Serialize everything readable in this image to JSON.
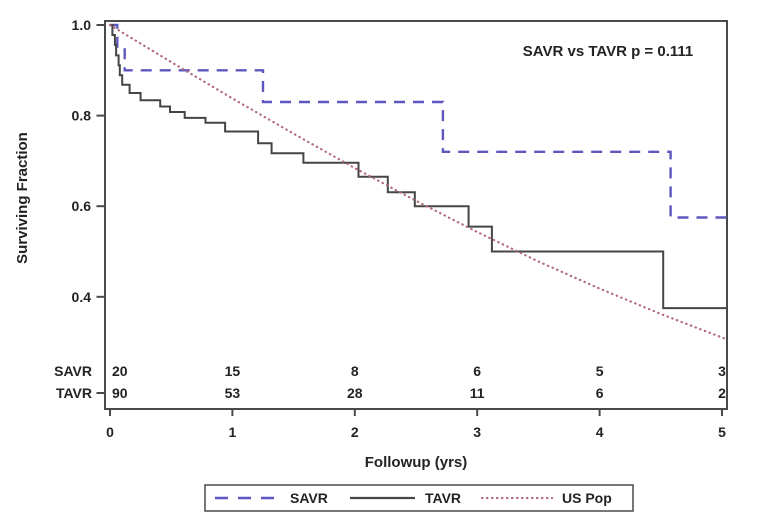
{
  "chart_data": {
    "type": "line",
    "subtype": "kaplan-meier-survival",
    "title": "",
    "xlabel": "Followup (yrs)",
    "ylabel": "Surviving Fraction",
    "annotation": "SAVR vs TAVR p = 0.111",
    "xlim": [
      0,
      5.04
    ],
    "ylim": [
      0.3,
      1.0
    ],
    "x_ticks": [
      0,
      1,
      2,
      3,
      4,
      5
    ],
    "x_tick_labels": [
      "0",
      "1",
      "2",
      "3",
      "4",
      "5"
    ],
    "y_ticks": [
      1.0,
      0.8,
      0.6,
      0.4
    ],
    "y_tick_labels": [
      "1.0",
      "0.8",
      "0.6",
      "0.4"
    ],
    "grid": false,
    "frame": true,
    "series": [
      {
        "name": "SAVR",
        "style": "dashed",
        "color": "#5e57bf",
        "kind": "step",
        "steps": [
          [
            0,
            1.0
          ],
          [
            0.06,
            0.95
          ],
          [
            0.12,
            0.9
          ],
          [
            1.25,
            0.83
          ],
          [
            2.72,
            0.72
          ],
          [
            4.58,
            0.575
          ]
        ],
        "end_x": 5.04
      },
      {
        "name": "TAVR",
        "style": "solid",
        "color": "#454545",
        "kind": "step",
        "steps": [
          [
            0,
            1.0
          ],
          [
            0.02,
            0.978
          ],
          [
            0.04,
            0.956
          ],
          [
            0.05,
            0.933
          ],
          [
            0.07,
            0.911
          ],
          [
            0.08,
            0.889
          ],
          [
            0.1,
            0.868
          ],
          [
            0.16,
            0.85
          ],
          [
            0.25,
            0.834
          ],
          [
            0.41,
            0.82
          ],
          [
            0.49,
            0.808
          ],
          [
            0.61,
            0.795
          ],
          [
            0.78,
            0.784
          ],
          [
            0.94,
            0.765
          ],
          [
            1.21,
            0.739
          ],
          [
            1.32,
            0.717
          ],
          [
            1.58,
            0.696
          ],
          [
            2.03,
            0.665
          ],
          [
            2.27,
            0.631
          ],
          [
            2.49,
            0.6
          ],
          [
            2.93,
            0.555
          ],
          [
            3.12,
            0.5
          ],
          [
            4.52,
            0.375
          ]
        ],
        "end_x": 5.04
      },
      {
        "name": "US Pop",
        "style": "dotted",
        "color": "#b26b77",
        "kind": "smooth",
        "points": [
          [
            0,
            1.0
          ],
          [
            0.5,
            0.918
          ],
          [
            1.0,
            0.838
          ],
          [
            1.5,
            0.76
          ],
          [
            2.0,
            0.684
          ],
          [
            2.5,
            0.612
          ],
          [
            3.0,
            0.543
          ],
          [
            3.5,
            0.478
          ],
          [
            4.0,
            0.418
          ],
          [
            4.5,
            0.362
          ],
          [
            5.04,
            0.306
          ]
        ]
      }
    ],
    "at_risk_table": {
      "x_positions": [
        0,
        1,
        2,
        3,
        4,
        5
      ],
      "rows": [
        {
          "label": "SAVR",
          "values": [
            "20",
            "15",
            "8",
            "6",
            "5",
            "3"
          ]
        },
        {
          "label": "TAVR",
          "values": [
            "90",
            "53",
            "28",
            "11",
            "6",
            "2"
          ]
        }
      ]
    },
    "legend": {
      "position": "bottom",
      "entries": [
        {
          "label": "SAVR",
          "style": "dashed",
          "color": "#5e57bf"
        },
        {
          "label": "TAVR",
          "style": "solid",
          "color": "#454545"
        },
        {
          "label": "US Pop",
          "style": "dotted",
          "color": "#b26b77"
        }
      ]
    },
    "colors": {
      "axis": "#4a4a4a",
      "text": "#232323",
      "background": "#ffffff"
    }
  }
}
